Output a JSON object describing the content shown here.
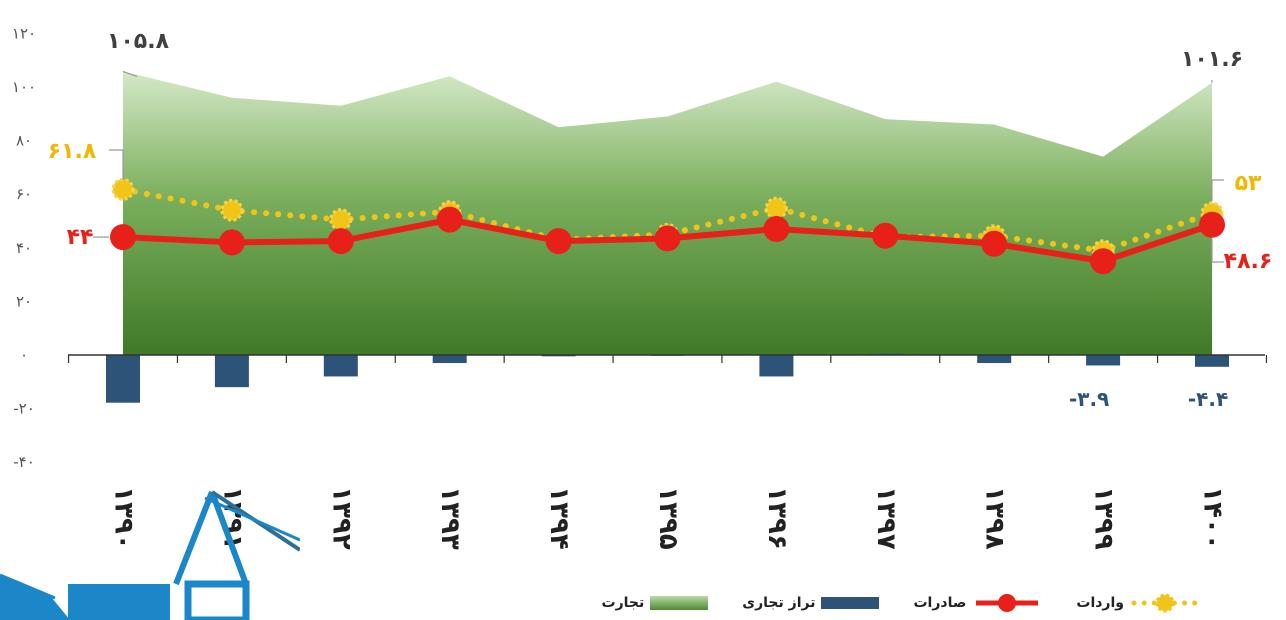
{
  "chart_data": {
    "type": "area",
    "categories": [
      "۱۳۹۰",
      "۱۳۹۱",
      "۱۳۹۲",
      "۱۳۹۳",
      "۱۳۹۴",
      "۱۳۹۵",
      "۱۳۹۶",
      "۱۳۹۷",
      "۱۳۹۸",
      "۱۳۹۹",
      "۱۴۰۰"
    ],
    "ylim": [
      -40,
      120
    ],
    "yticks": [
      120,
      100,
      80,
      60,
      40,
      20,
      0,
      -20,
      -40
    ],
    "ytick_labels": [
      "۱۲۰",
      "۱۰۰",
      "۸۰",
      "۶۰",
      "۴۰",
      "۲۰",
      "۰",
      "-۲۰",
      "-۴۰"
    ],
    "series": [
      {
        "name": "تجارت",
        "type": "area",
        "color": "#4f8a32",
        "values": [
          105.8,
          96,
          93,
          104,
          85,
          89,
          102,
          88,
          86,
          74,
          101.6
        ]
      },
      {
        "name": "تراز تجاری",
        "type": "bar",
        "color": "#2e5378",
        "values": [
          -17.8,
          -12,
          -8,
          -3,
          -0.5,
          0,
          -8,
          0.5,
          -3,
          -3.9,
          -4.4
        ]
      },
      {
        "name": "صادرات",
        "type": "line",
        "color": "#e8201a",
        "values": [
          44,
          42,
          42.5,
          50.5,
          42.5,
          43.5,
          47,
          44.5,
          41.5,
          35,
          48.6
        ]
      },
      {
        "name": "واردات",
        "type": "line-dotted",
        "color": "#f0c419",
        "values": [
          61.8,
          54,
          50.5,
          53.5,
          43,
          45,
          54.8,
          44,
          44.5,
          38.9,
          53
        ]
      }
    ],
    "data_labels": {
      "total_first": "۱۰۵.۸",
      "total_last": "۱۰۱.۶",
      "imports_first": "۶۱.۸",
      "imports_last": "۵۳",
      "exports_first": "۴۴",
      "exports_last": "۴۸.۶",
      "balance_1399": "-۳.۹",
      "balance_1400": "-۴.۴"
    },
    "legend": {
      "position": "bottom",
      "items": [
        "واردات",
        "صادرات",
        "تراز تجاری",
        "تجارت"
      ]
    }
  }
}
